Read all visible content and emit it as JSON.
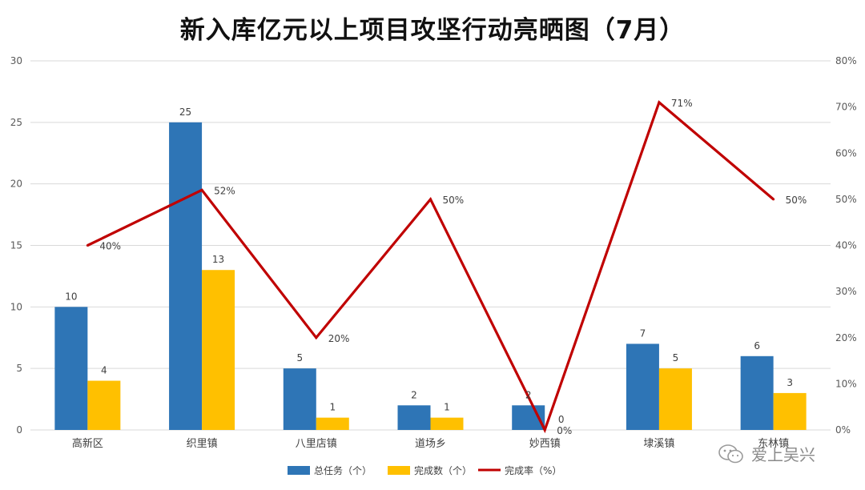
{
  "title": "新入库亿元以上项目攻坚行动亮晒图（7月）",
  "watermark": "爱上吴兴",
  "chart_data": {
    "type": "bar",
    "categories": [
      "高新区",
      "织里镇",
      "八里店镇",
      "道场乡",
      "妙西镇",
      "埭溪镇",
      "东林镇"
    ],
    "series": [
      {
        "name": "总任务（个）",
        "type": "bar",
        "axis": "left",
        "color": "#2E75B6",
        "values": [
          10,
          25,
          5,
          2,
          2,
          7,
          6
        ],
        "labels": [
          "10",
          "25",
          "5",
          "2",
          "2",
          "7",
          "6"
        ]
      },
      {
        "name": "完成数（个）",
        "type": "bar",
        "axis": "left",
        "color": "#FFC000",
        "values": [
          4,
          13,
          1,
          1,
          0,
          5,
          3
        ],
        "labels": [
          "4",
          "13",
          "1",
          "1",
          "0",
          "5",
          "3"
        ]
      },
      {
        "name": "完成率（%）",
        "type": "line",
        "axis": "right",
        "color": "#C00000",
        "values": [
          40,
          52,
          20,
          50,
          0,
          71,
          50
        ],
        "labels": [
          "40%",
          "52%",
          "20%",
          "50%",
          "0%",
          "71%",
          "50%"
        ]
      }
    ],
    "ylim_left": [
      0,
      30
    ],
    "yticks_left": [
      "0",
      "5",
      "10",
      "15",
      "20",
      "25",
      "30"
    ],
    "ylim_right": [
      0,
      80
    ],
    "yticks_right": [
      "0%",
      "10%",
      "20%",
      "30%",
      "40%",
      "50%",
      "60%",
      "70%",
      "80%"
    ],
    "grid": true,
    "legend": "bottom"
  }
}
